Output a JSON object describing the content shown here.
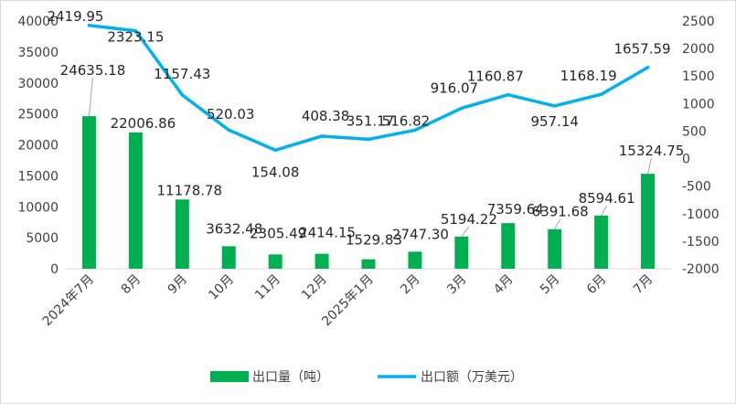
{
  "chart_data": {
    "type": "bar+line",
    "categories": [
      "2024年7月",
      "8月",
      "9月",
      "10月",
      "11月",
      "12月",
      "2025年1月",
      "2月",
      "3月",
      "4月",
      "5月",
      "6月",
      "7月"
    ],
    "series": [
      {
        "name": "出口量（吨）",
        "type": "bar",
        "axis": "left",
        "color": "#00B050",
        "values": [
          24635.18,
          22006.86,
          11178.78,
          3632.48,
          2305.49,
          2414.15,
          1529.83,
          2747.3,
          5194.22,
          7359.64,
          6391.68,
          8594.61,
          15324.75
        ],
        "labels": [
          "24635.18",
          "22006.86",
          "11178.78",
          "3632.48",
          "2305.49",
          "2414.15",
          "1529.83",
          "2747.30",
          "5194.22",
          "7359.64",
          "6391.68",
          "8594.61",
          "15324.75"
        ]
      },
      {
        "name": "出口额（万美元）",
        "type": "line",
        "axis": "right",
        "color": "#00B0F0",
        "values": [
          2419.95,
          2323.15,
          1157.43,
          520.03,
          154.08,
          408.38,
          351.17,
          516.82,
          916.07,
          1160.87,
          957.14,
          1168.19,
          1657.59
        ],
        "labels": [
          "2419.95",
          "2323.15",
          "1157.43",
          "520.03",
          "154.08",
          "408.38",
          "351.17",
          "516.82",
          "916.07",
          "1160.87",
          "957.14",
          "1168.19",
          "1657.59"
        ]
      }
    ],
    "left_axis": {
      "ylim": [
        0,
        40000
      ],
      "ticks": [
        "0",
        "5000",
        "10000",
        "15000",
        "20000",
        "25000",
        "30000",
        "35000",
        "40000"
      ],
      "tick_values": [
        0,
        5000,
        10000,
        15000,
        20000,
        25000,
        30000,
        35000,
        40000
      ]
    },
    "right_axis": {
      "ylim": [
        -2000,
        2500
      ],
      "ticks": [
        "-2000",
        "-1500",
        "-1000",
        "-500",
        "0",
        "500",
        "1000",
        "1500",
        "2000",
        "2500"
      ],
      "tick_values": [
        -2000,
        -1500,
        -1000,
        -500,
        0,
        500,
        1000,
        1500,
        2000,
        2500
      ]
    },
    "grid": false,
    "legend": "bottom",
    "title": ""
  }
}
